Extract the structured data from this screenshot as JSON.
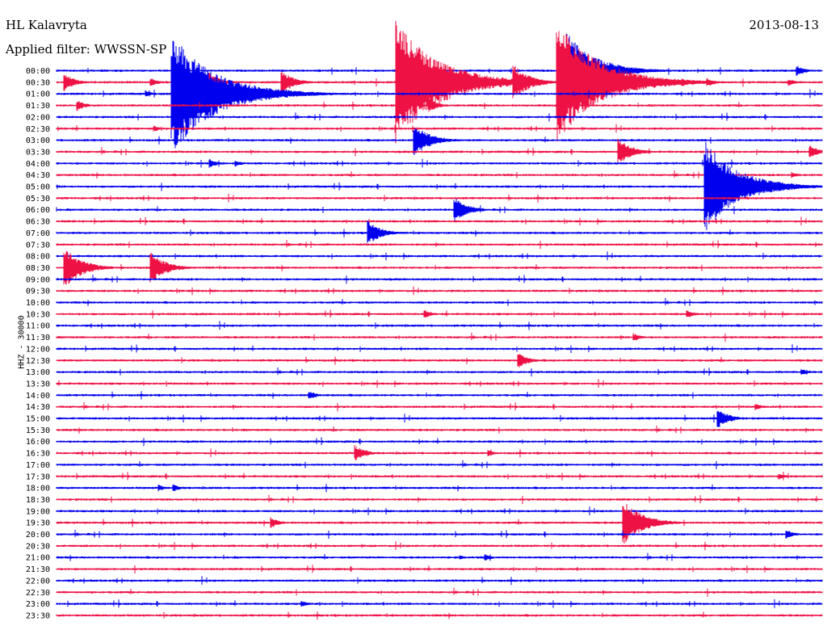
{
  "header": {
    "station": "HL Kalavryta",
    "filter": "Applied filter: WWSSN-SP",
    "date": "2013-08-13"
  },
  "colors": {
    "blue": "#0000ee",
    "red": "#ee1144"
  },
  "chart_data": {
    "type": "line",
    "title": "HL Kalavryta",
    "ylabel": "HHZ - 30000",
    "grid": false,
    "rows": [
      "00:00",
      "00:30",
      "01:00",
      "01:30",
      "02:00",
      "02:30",
      "03:00",
      "03:30",
      "04:00",
      "04:30",
      "05:00",
      "05:30",
      "06:00",
      "06:30",
      "07:00",
      "07:30",
      "08:00",
      "08:30",
      "09:00",
      "09:30",
      "10:00",
      "10:30",
      "11:00",
      "11:30",
      "12:00",
      "12:30",
      "13:00",
      "13:30",
      "14:00",
      "14:30",
      "15:00",
      "15:30",
      "16:00",
      "16:30",
      "17:00",
      "17:30",
      "18:00",
      "18:30",
      "19:00",
      "19:30",
      "20:00",
      "20:30",
      "21:00",
      "21:30",
      "22:00",
      "22:30",
      "23:00",
      "23:30"
    ],
    "row_colors": [
      "blue",
      "red"
    ],
    "row_span_minutes": 30,
    "events": [
      {
        "row": "00:00",
        "minute": 20.0,
        "amp": 3.3
      },
      {
        "row": "00:00",
        "minute": 29.0,
        "amp": 0.5
      },
      {
        "row": "00:30",
        "minute": 0.3,
        "amp": 0.8
      },
      {
        "row": "00:30",
        "minute": 6.0,
        "amp": 0.9
      },
      {
        "row": "00:30",
        "minute": 8.8,
        "amp": 1.1
      },
      {
        "row": "00:30",
        "minute": 13.3,
        "amp": 5.3
      },
      {
        "row": "00:30",
        "minute": 17.9,
        "amp": 1.6
      },
      {
        "row": "00:30",
        "minute": 17.0,
        "amp": 0.4
      },
      {
        "row": "00:30",
        "minute": 19.6,
        "amp": 5.3
      },
      {
        "row": "00:30",
        "minute": 3.7,
        "amp": 0.4
      },
      {
        "row": "00:30",
        "minute": 20.7,
        "amp": 0.4
      },
      {
        "row": "00:30",
        "minute": 24.5,
        "amp": 0.4
      },
      {
        "row": "00:30",
        "minute": 25.5,
        "amp": 0.4
      },
      {
        "row": "00:30",
        "minute": 28.7,
        "amp": 0.3
      },
      {
        "row": "01:00",
        "minute": 4.5,
        "amp": 5.3
      },
      {
        "row": "01:00",
        "minute": 3.5,
        "amp": 0.3
      },
      {
        "row": "01:30",
        "minute": 0.8,
        "amp": 0.5
      },
      {
        "row": "01:30",
        "minute": 14.6,
        "amp": 0.6
      },
      {
        "row": "02:30",
        "minute": 3.8,
        "amp": 0.3
      },
      {
        "row": "03:00",
        "minute": 14.0,
        "amp": 1.5
      },
      {
        "row": "03:30",
        "minute": 22.0,
        "amp": 1.2
      },
      {
        "row": "03:30",
        "minute": 29.5,
        "amp": 0.6
      },
      {
        "row": "04:00",
        "minute": 6.0,
        "amp": 0.4
      },
      {
        "row": "04:00",
        "minute": 7.0,
        "amp": 0.3
      },
      {
        "row": "04:30",
        "minute": 28.8,
        "amp": 0.3
      },
      {
        "row": "05:00",
        "minute": 25.4,
        "amp": 4.0
      },
      {
        "row": "06:00",
        "minute": 15.6,
        "amp": 1.1
      },
      {
        "row": "07:00",
        "minute": 12.2,
        "amp": 1.1
      },
      {
        "row": "08:30",
        "minute": 0.3,
        "amp": 1.8
      },
      {
        "row": "08:30",
        "minute": 3.7,
        "amp": 1.4
      },
      {
        "row": "10:30",
        "minute": 14.4,
        "amp": 0.4
      },
      {
        "row": "10:30",
        "minute": 24.7,
        "amp": 0.4
      },
      {
        "row": "11:30",
        "minute": 22.6,
        "amp": 0.4
      },
      {
        "row": "12:30",
        "minute": 18.1,
        "amp": 0.7
      },
      {
        "row": "13:00",
        "minute": 29.2,
        "amp": 0.3
      },
      {
        "row": "14:00",
        "minute": 9.9,
        "amp": 0.4
      },
      {
        "row": "14:30",
        "minute": 27.4,
        "amp": 0.3
      },
      {
        "row": "15:00",
        "minute": 25.9,
        "amp": 0.9
      },
      {
        "row": "16:30",
        "minute": 11.7,
        "amp": 0.7
      },
      {
        "row": "16:30",
        "minute": 16.9,
        "amp": 0.3
      },
      {
        "row": "17:30",
        "minute": 28.3,
        "amp": 0.3
      },
      {
        "row": "18:00",
        "minute": 4.0,
        "amp": 0.3
      },
      {
        "row": "18:00",
        "minute": 4.6,
        "amp": 0.3
      },
      {
        "row": "19:30",
        "minute": 8.4,
        "amp": 0.5
      },
      {
        "row": "19:30",
        "minute": 22.2,
        "amp": 2.0
      },
      {
        "row": "20:00",
        "minute": 28.6,
        "amp": 0.4
      },
      {
        "row": "21:00",
        "minute": 15.8,
        "amp": 0.2
      },
      {
        "row": "21:00",
        "minute": 16.8,
        "amp": 0.3
      },
      {
        "row": "23:00",
        "minute": 9.6,
        "amp": 0.3
      }
    ]
  }
}
